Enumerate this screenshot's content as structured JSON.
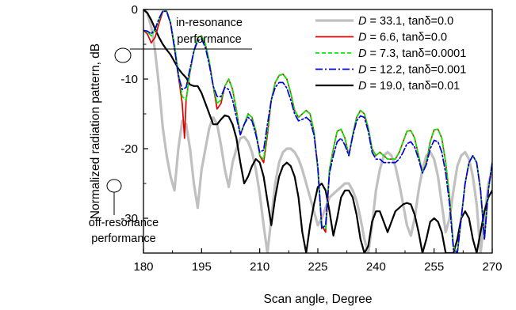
{
  "chart_data": {
    "type": "line",
    "title": "",
    "xlabel": "Scan angle, Degree",
    "ylabel": "Normalized radiation pattern, dB",
    "xlim": [
      180,
      270
    ],
    "ylim": [
      -35,
      0
    ],
    "xticks": [
      180,
      195,
      210,
      225,
      240,
      255,
      270
    ],
    "yticks": [
      0,
      -10,
      -20,
      -30
    ],
    "grid": false,
    "legend_position": "top-right",
    "annotations": [
      {
        "text_lines": [
          "in-resonance",
          "performance"
        ],
        "x": 189.3,
        "y": -5.8
      },
      {
        "text_lines": [
          "off-resonance",
          "performance"
        ],
        "x": 187.5,
        "y": -25.8
      }
    ],
    "series": [
      {
        "name": "D = 33.1, tanδ=0.0",
        "legend_d": "33.1",
        "legend_tan": "0.0",
        "color": "#c0c0c0",
        "dash": "solid",
        "x": [
          180,
          181,
          182,
          183,
          184,
          185,
          186,
          187,
          188,
          189,
          190,
          191,
          192,
          193,
          194,
          195,
          196,
          197,
          198,
          199,
          200,
          201,
          202,
          203,
          204,
          205,
          206,
          207,
          208,
          209,
          210,
          211,
          212,
          213,
          214,
          215,
          216,
          217,
          218,
          219,
          220,
          221,
          222,
          223,
          224,
          225,
          226,
          227,
          228,
          229,
          230,
          231,
          232,
          233,
          234,
          235,
          236,
          237,
          238,
          239,
          240,
          241,
          242,
          243,
          244,
          245,
          246,
          247,
          248,
          249,
          250,
          251,
          252,
          253,
          254,
          255,
          256,
          257,
          258,
          259,
          260,
          261,
          262,
          263,
          264,
          265,
          266,
          267,
          268,
          269,
          270
        ],
        "y": [
          0,
          -0.5,
          -2.5,
          -6,
          -11,
          -17,
          -21,
          -24,
          -26,
          -20,
          -16,
          -16.5,
          -20,
          -25,
          -28.5,
          -23,
          -20,
          -17,
          -15.5,
          -16.5,
          -19.5,
          -23,
          -25.5,
          -22,
          -20,
          -18.5,
          -18.3,
          -19,
          -20.5,
          -23,
          -26.5,
          -31,
          -35,
          -30,
          -25,
          -22,
          -20.5,
          -20,
          -20,
          -20.5,
          -21.5,
          -23,
          -25,
          -27,
          -29,
          -31,
          -30,
          -28.5,
          -27,
          -26.5,
          -26,
          -25.5,
          -25,
          -25,
          -26,
          -27.5,
          -30,
          -33,
          -35,
          -31,
          -26,
          -23,
          -21,
          -20.5,
          -21,
          -22.5,
          -25,
          -28,
          -31,
          -32.5,
          -30,
          -26,
          -23,
          -21,
          -20.5,
          -21.5,
          -24,
          -28,
          -32,
          -30,
          -26,
          -22.5,
          -21,
          -20.5,
          -21.5,
          -24,
          -28,
          -35,
          -30,
          -25,
          -23
        ]
      },
      {
        "name": "D = 6.6, tanδ=0.0",
        "legend_d": "6.6",
        "legend_tan": "0.0",
        "color": "#e00000",
        "dash": "solid",
        "x": [
          180,
          181,
          182,
          183,
          184,
          185,
          186,
          187,
          188,
          189,
          190,
          190.6,
          191,
          192,
          193,
          194,
          195,
          196,
          197,
          198,
          199,
          200,
          201,
          202,
          203,
          204,
          205,
          206,
          207,
          208,
          209,
          210,
          211,
          212,
          213,
          214,
          215,
          216,
          217,
          218,
          219,
          220,
          221,
          222,
          223,
          224,
          225,
          226,
          227,
          228,
          229,
          230,
          231,
          232,
          233,
          234,
          235,
          236,
          237,
          238,
          239,
          240,
          241,
          242,
          243,
          244,
          245,
          246,
          247,
          248,
          249,
          250,
          251,
          252,
          253,
          254,
          255,
          256,
          257,
          258,
          259,
          260,
          261,
          262,
          263,
          264,
          265,
          266,
          267,
          268,
          269,
          270
        ],
        "y": [
          -3,
          -3.5,
          -4.8,
          -4,
          -2,
          -0.3,
          -0.2,
          -2,
          -5.5,
          -9.5,
          -13.5,
          -18.5,
          -13,
          -9,
          -6,
          -4,
          -3.8,
          -5,
          -7.5,
          -11,
          -14.3,
          -13.5,
          -11,
          -10,
          -11.5,
          -14.5,
          -18,
          -16.5,
          -15,
          -15.5,
          -17.5,
          -21,
          -22,
          -18,
          -13,
          -10.5,
          -9.5,
          -9.3,
          -10,
          -12,
          -14.5,
          -15.5,
          -15,
          -14.5,
          -15,
          -17.5,
          -23,
          -31,
          -32,
          -23,
          -20,
          -17.5,
          -17.2,
          -18.5,
          -21,
          -18,
          -15.5,
          -14.5,
          -15,
          -17,
          -20,
          -21,
          -20.5,
          -21,
          -21.5,
          -21.5,
          -21.5,
          -20.5,
          -19,
          -17.5,
          -17.4,
          -18.5,
          -21,
          -23.5,
          -22,
          -19,
          -17.3,
          -17.2,
          -18.5,
          -22,
          -27,
          -34,
          -35,
          -30,
          -25,
          -22,
          -21,
          -22,
          -26,
          -33,
          -26,
          -22
        ]
      },
      {
        "name": "D = 7.3, tanδ=0.0001",
        "legend_d": "7.3",
        "legend_tan": "0.0001",
        "color": "#00ee00",
        "dash": "5,3",
        "x": [
          180,
          181,
          182,
          183,
          184,
          185,
          186,
          187,
          188,
          189,
          190,
          191,
          192,
          193,
          194,
          195,
          196,
          197,
          198,
          199,
          200,
          201,
          202,
          203,
          204,
          205,
          206,
          207,
          208,
          209,
          210,
          211,
          212,
          213,
          214,
          215,
          216,
          217,
          218,
          219,
          220,
          221,
          222,
          223,
          224,
          225,
          226,
          227,
          228,
          229,
          230,
          231,
          232,
          233,
          234,
          235,
          236,
          237,
          238,
          239,
          240,
          241,
          242,
          243,
          244,
          245,
          246,
          247,
          248,
          249,
          250,
          251,
          252,
          253,
          254,
          255,
          256,
          257,
          258,
          259,
          260,
          261,
          262,
          263,
          264,
          265,
          266,
          267,
          268,
          269,
          270
        ],
        "y": [
          -3,
          -3.2,
          -3.8,
          -3,
          -1.5,
          -0.2,
          -0.2,
          -1.8,
          -5,
          -9,
          -12.5,
          -13,
          -9,
          -6,
          -4,
          -3.8,
          -5,
          -7.5,
          -11,
          -13.5,
          -13,
          -11,
          -10,
          -11.5,
          -14.5,
          -18,
          -16.5,
          -15,
          -15.5,
          -17.5,
          -21,
          -21.5,
          -17.5,
          -13,
          -10.5,
          -9.5,
          -9.3,
          -10,
          -12,
          -14.5,
          -15.5,
          -15,
          -14.5,
          -15,
          -17.5,
          -23,
          -31,
          -31.5,
          -23,
          -20,
          -17.5,
          -17.2,
          -18.5,
          -21,
          -18,
          -15.5,
          -14.5,
          -15,
          -17,
          -20,
          -21,
          -20.5,
          -21,
          -21.5,
          -21.5,
          -21.5,
          -20.5,
          -19,
          -17.5,
          -17.4,
          -18.5,
          -21,
          -23.5,
          -22,
          -19,
          -17.3,
          -17.2,
          -18.5,
          -22,
          -27,
          -34,
          -35,
          -30,
          -25,
          -22,
          -21,
          -22,
          -26,
          -33,
          -26,
          -22
        ]
      },
      {
        "name": "D = 12.2, tanδ=0.001",
        "legend_d": "12.2",
        "legend_tan": "0.001",
        "color": "#0000dd",
        "dash": "9,3,2,3",
        "x": [
          180,
          181,
          182,
          183,
          184,
          185,
          186,
          187,
          188,
          189,
          190,
          191,
          192,
          193,
          194,
          195,
          196,
          197,
          198,
          199,
          200,
          201,
          202,
          203,
          204,
          205,
          206,
          207,
          208,
          209,
          210,
          211,
          212,
          213,
          214,
          215,
          216,
          217,
          218,
          219,
          220,
          221,
          222,
          223,
          224,
          225,
          226,
          227,
          228,
          229,
          230,
          231,
          232,
          233,
          234,
          235,
          236,
          237,
          238,
          239,
          240,
          241,
          242,
          243,
          244,
          245,
          246,
          247,
          248,
          249,
          250,
          251,
          252,
          253,
          254,
          255,
          256,
          257,
          258,
          259,
          260,
          261,
          262,
          263,
          264,
          265,
          266,
          267,
          268,
          269,
          270
        ],
        "y": [
          -3,
          -3.1,
          -3.5,
          -2.8,
          -1.3,
          -0.2,
          -0.3,
          -2,
          -5.5,
          -9.5,
          -11.5,
          -11.2,
          -8.5,
          -6,
          -4.5,
          -4.2,
          -5.5,
          -8,
          -11,
          -12.5,
          -12.5,
          -11.2,
          -11.5,
          -13,
          -15.5,
          -18,
          -16.5,
          -15.5,
          -16,
          -18,
          -20.5,
          -20.2,
          -16.5,
          -13,
          -11.2,
          -10.5,
          -10.5,
          -11.3,
          -13,
          -15,
          -16,
          -15.8,
          -15.5,
          -16,
          -18,
          -22.5,
          -31.5,
          -31,
          -23.5,
          -21,
          -19,
          -18.5,
          -19.5,
          -21,
          -18.2,
          -16,
          -15.3,
          -15.5,
          -17.5,
          -20.5,
          -21.5,
          -21.5,
          -22,
          -22,
          -22,
          -22,
          -21.5,
          -20.5,
          -19.3,
          -19,
          -19.8,
          -21.5,
          -23.5,
          -22.3,
          -20,
          -18.8,
          -19,
          -20.5,
          -23.5,
          -28,
          -34.5,
          -35,
          -30,
          -25,
          -22,
          -21,
          -22,
          -26,
          -33,
          -26,
          -22
        ]
      },
      {
        "name": "D = 19.0, tanδ=0.01",
        "legend_d": "19.0",
        "legend_tan": "0.01",
        "color": "#000000",
        "dash": "solid",
        "x": [
          180,
          181,
          182,
          183,
          184,
          185,
          186,
          187,
          188,
          189,
          190,
          191,
          192,
          193,
          194,
          195,
          196,
          197,
          198,
          199,
          200,
          201,
          202,
          203,
          204,
          205,
          206,
          207,
          208,
          209,
          210,
          211,
          212,
          213,
          214,
          215,
          216,
          217,
          218,
          219,
          220,
          221,
          222,
          223,
          224,
          225,
          226,
          227,
          228,
          229,
          230,
          231,
          232,
          233,
          234,
          235,
          236,
          237,
          238,
          239,
          240,
          241,
          242,
          243,
          244,
          245,
          246,
          247,
          248,
          249,
          250,
          251,
          252,
          253,
          254,
          255,
          256,
          257,
          258,
          259,
          260,
          261,
          262,
          263,
          264,
          265,
          266,
          267,
          268,
          269,
          270
        ],
        "y": [
          0,
          -0.5,
          -1.5,
          -2.8,
          -4,
          -5,
          -5.8,
          -6.5,
          -7.5,
          -8.5,
          -9.2,
          -9.8,
          -10.8,
          -11,
          -11,
          -12,
          -13.5,
          -15,
          -16.5,
          -16.5,
          -15.8,
          -15.2,
          -15.4,
          -16.5,
          -18.5,
          -22,
          -25,
          -24,
          -22.5,
          -21.5,
          -22,
          -24,
          -27.5,
          -31,
          -27,
          -24,
          -22.5,
          -22,
          -22.5,
          -24,
          -27,
          -32,
          -35,
          -31,
          -28,
          -25.5,
          -25,
          -26,
          -29,
          -32.5,
          -30,
          -27,
          -26,
          -26,
          -27,
          -29.5,
          -33,
          -35,
          -34,
          -30.5,
          -29,
          -29,
          -30.5,
          -32,
          -30.5,
          -29,
          -28.5,
          -28,
          -27.8,
          -28,
          -29.5,
          -32,
          -35,
          -33,
          -30.5,
          -30,
          -30.5,
          -32,
          -35,
          -35,
          -35,
          -33,
          -30,
          -29,
          -30,
          -33,
          -35,
          -32,
          -29,
          -27,
          -26
        ]
      }
    ]
  }
}
